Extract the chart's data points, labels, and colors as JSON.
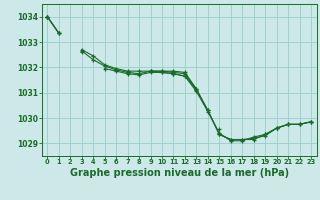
{
  "background_color": "#cce8e8",
  "grid_color": "#99cccc",
  "line_color": "#1a6b2a",
  "marker_color": "#1a6b2a",
  "xlabel": "Graphe pression niveau de la mer (hPa)",
  "xlabel_fontsize": 7.0,
  "xlim": [
    -0.5,
    23.5
  ],
  "ylim": [
    1028.5,
    1034.5
  ],
  "yticks": [
    1029,
    1030,
    1031,
    1032,
    1033,
    1034
  ],
  "xticks": [
    0,
    1,
    2,
    3,
    4,
    5,
    6,
    7,
    8,
    9,
    10,
    11,
    12,
    13,
    14,
    15,
    16,
    17,
    18,
    19,
    20,
    21,
    22,
    23
  ],
  "series": [
    [
      1034.0,
      1033.35,
      null,
      1032.7,
      1032.45,
      1032.1,
      1031.95,
      1031.85,
      1031.85,
      1031.85,
      1031.85,
      1031.85,
      1031.8,
      1031.15,
      1030.3,
      1029.35,
      1029.15,
      1029.15,
      1029.15,
      1029.35,
      1029.6,
      1029.75,
      1029.75,
      1029.85
    ],
    [
      1034.0,
      1033.35,
      null,
      1032.65,
      1032.3,
      1032.05,
      1031.9,
      1031.8,
      1031.75,
      1031.85,
      1031.85,
      1031.8,
      1031.75,
      1031.1,
      1030.3,
      1029.35,
      1029.15,
      1029.15,
      1029.2,
      1029.3,
      1029.6,
      1029.75,
      1029.75,
      1029.85
    ],
    [
      1034.0,
      1033.35,
      null,
      1032.6,
      null,
      1031.95,
      1031.85,
      1031.75,
      1031.7,
      1031.8,
      1031.8,
      1031.75,
      1031.65,
      1031.05,
      1030.25,
      1029.4,
      1029.1,
      1029.1,
      1029.25,
      1029.35,
      1029.6,
      1029.75,
      1029.75,
      1029.85
    ],
    [
      1034.0,
      null,
      null,
      null,
      null,
      null,
      null,
      null,
      null,
      1031.85,
      1031.8,
      1031.75,
      1031.65,
      1031.15,
      null,
      1029.55,
      null,
      null,
      null,
      null,
      null,
      null,
      null,
      null
    ]
  ]
}
